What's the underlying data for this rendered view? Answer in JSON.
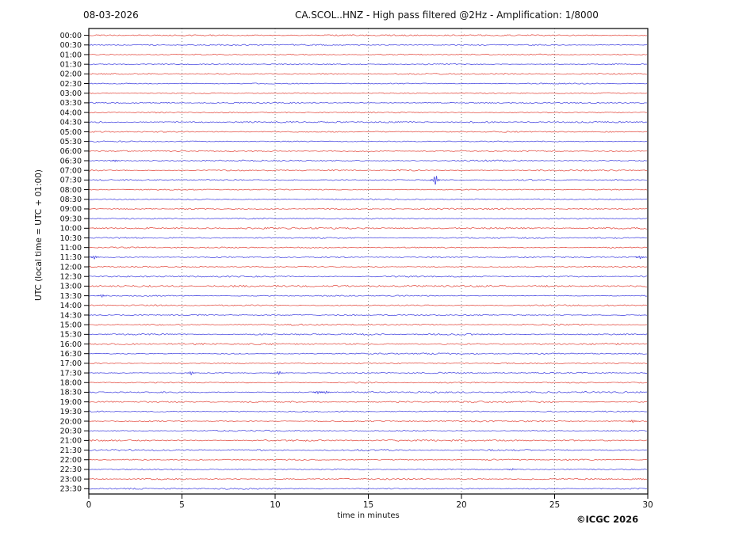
{
  "header": {
    "date": "08-03-2026",
    "title": "CA.SCOL..HNZ - High pass filtered @2Hz - Amplification: 1/8000"
  },
  "footer": {
    "copyright": "©ICGC 2026"
  },
  "chart_data": {
    "type": "line",
    "description": "24-hour helicorder seismogram, 48 half-hour traces of 30 minutes each, alternating red (on the hour) and blue (on the half hour), mostly flat background noise with a few small spikes",
    "title": "CA.SCOL..HNZ - High pass filtered @2Hz - Amplification: 1/8000",
    "date": "08-03-2026",
    "xlabel": "time in minutes",
    "ylabel": "UTC (local time = UTC + 01:00)",
    "xlim": [
      0,
      30
    ],
    "x_ticks": [
      0,
      5,
      10,
      15,
      20,
      25,
      30
    ],
    "grid": "vertical dotted lines at 5-minute intervals",
    "trace_colors": {
      "on_hour": "#e03a2e",
      "on_half_hour": "#3333dd"
    },
    "grid_color": "#666666",
    "axis_color": "#000000",
    "rows": [
      {
        "label": "00:00",
        "noise": 0.5
      },
      {
        "label": "00:30",
        "noise": 0.5
      },
      {
        "label": "01:00",
        "noise": 0.45
      },
      {
        "label": "01:30",
        "noise": 0.6
      },
      {
        "label": "02:00",
        "noise": 0.55
      },
      {
        "label": "02:30",
        "noise": 0.45
      },
      {
        "label": "03:00",
        "noise": 0.4
      },
      {
        "label": "03:30",
        "noise": 0.5
      },
      {
        "label": "04:00",
        "noise": 0.45
      },
      {
        "label": "04:30",
        "noise": 0.75
      },
      {
        "label": "05:00",
        "noise": 0.5
      },
      {
        "label": "05:30",
        "noise": 0.55
      },
      {
        "label": "06:00",
        "noise": 0.5
      },
      {
        "label": "06:30",
        "noise": 0.8
      },
      {
        "label": "07:00",
        "noise": 0.65
      },
      {
        "label": "07:30",
        "noise": 0.55
      },
      {
        "label": "08:00",
        "noise": 0.5
      },
      {
        "label": "08:30",
        "noise": 0.45
      },
      {
        "label": "09:00",
        "noise": 0.7
      },
      {
        "label": "09:30",
        "noise": 0.6
      },
      {
        "label": "10:00",
        "noise": 0.9
      },
      {
        "label": "10:30",
        "noise": 0.65
      },
      {
        "label": "11:00",
        "noise": 0.5
      },
      {
        "label": "11:30",
        "noise": 0.6
      },
      {
        "label": "12:00",
        "noise": 0.5
      },
      {
        "label": "12:30",
        "noise": 0.7
      },
      {
        "label": "13:00",
        "noise": 0.9
      },
      {
        "label": "13:30",
        "noise": 0.5
      },
      {
        "label": "14:00",
        "noise": 0.55
      },
      {
        "label": "14:30",
        "noise": 0.5
      },
      {
        "label": "15:00",
        "noise": 0.6
      },
      {
        "label": "15:30",
        "noise": 0.8
      },
      {
        "label": "16:00",
        "noise": 0.9
      },
      {
        "label": "16:30",
        "noise": 0.7
      },
      {
        "label": "17:00",
        "noise": 0.5
      },
      {
        "label": "17:30",
        "noise": 0.55
      },
      {
        "label": "18:00",
        "noise": 0.5
      },
      {
        "label": "18:30",
        "noise": 0.6
      },
      {
        "label": "19:00",
        "noise": 0.7
      },
      {
        "label": "19:30",
        "noise": 0.55
      },
      {
        "label": "20:00",
        "noise": 0.6
      },
      {
        "label": "20:30",
        "noise": 0.6
      },
      {
        "label": "21:00",
        "noise": 0.9
      },
      {
        "label": "21:30",
        "noise": 0.85
      },
      {
        "label": "22:00",
        "noise": 0.65
      },
      {
        "label": "22:30",
        "noise": 0.55
      },
      {
        "label": "23:00",
        "noise": 0.7
      },
      {
        "label": "23:30",
        "noise": 0.6
      }
    ],
    "events": [
      {
        "row": "07:30",
        "minute": 18.6,
        "amp": 6.5,
        "note": "largest spike"
      },
      {
        "row": "06:30",
        "minute": 1.4,
        "amp": 1.2
      },
      {
        "row": "11:30",
        "minute": 0.3,
        "amp": 2.0
      },
      {
        "row": "11:30",
        "minute": 29.6,
        "amp": 1.8
      },
      {
        "row": "13:30",
        "minute": 0.7,
        "amp": 1.8
      },
      {
        "row": "17:30",
        "minute": 5.5,
        "amp": 2.2
      },
      {
        "row": "17:30",
        "minute": 10.2,
        "amp": 2.2
      },
      {
        "row": "18:30",
        "minute": 12.3,
        "amp": 1.7
      },
      {
        "row": "18:30",
        "minute": 12.7,
        "amp": 1.5
      },
      {
        "row": "20:00",
        "minute": 29.2,
        "amp": 1.6
      },
      {
        "row": "22:30",
        "minute": 22.7,
        "amp": 1.4
      }
    ]
  }
}
